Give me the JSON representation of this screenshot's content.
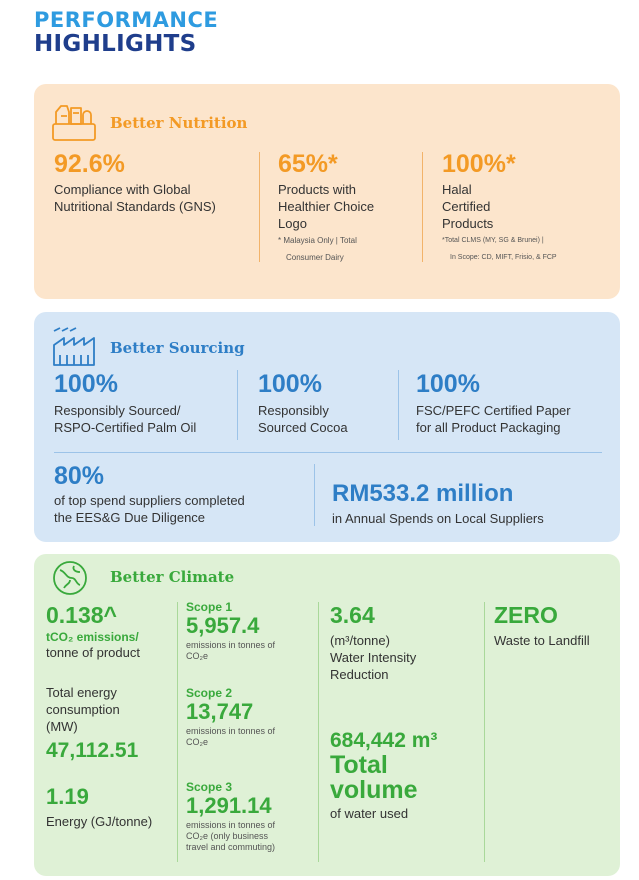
{
  "heading": {
    "line1": "PERFORMANCE",
    "line2": "HIGHLIGHTS"
  },
  "colors": {
    "nutrition": "#f39a25",
    "sourcing": "#2e7ec6",
    "climate": "#39a93c",
    "navy": "#1f3e8c"
  },
  "nutrition": {
    "icon": "food-products-icon",
    "title": "Better Nutrition",
    "stats": [
      {
        "value": "92.6%",
        "lines": [
          "Compliance with Global",
          "Nutritional Standards (GNS)"
        ],
        "notes": []
      },
      {
        "value": "65%*",
        "lines": [
          "Products with",
          "Healthier Choice",
          "Logo"
        ],
        "notes": [
          "* Malaysia Only | Total",
          "Consumer Dairy"
        ]
      },
      {
        "value": "100%*",
        "lines": [
          "Halal",
          "Certified",
          "Products"
        ],
        "notes": [
          "*Total CLMS (MY, SG & Brunei) |",
          "In Scope: CD, MIFT, Frisio, & FCP"
        ]
      }
    ]
  },
  "sourcing": {
    "icon": "factory-icon",
    "title": "Better Sourcing",
    "stats": [
      {
        "value": "100%",
        "lines": [
          "Responsibly Sourced/",
          "RSPO-Certified Palm Oil"
        ]
      },
      {
        "value": "100%",
        "lines": [
          "Responsibly",
          "Sourced Cocoa"
        ]
      },
      {
        "value": "100%",
        "lines": [
          "FSC/PEFC Certified Paper",
          "for all Product Packaging"
        ]
      },
      {
        "value": "80%",
        "lines": [
          "of top spend suppliers completed",
          "the EES&G Due Diligence"
        ]
      },
      {
        "value": "RM533.2 million",
        "lines": [
          "in Annual Spends on Local Suppliers"
        ]
      }
    ]
  },
  "climate": {
    "icon": "globe-leaf-icon",
    "title": "Better Climate",
    "emissions": {
      "value": "0.138^",
      "unit": "tCO₂ emissions/",
      "unit2": "tonne of product"
    },
    "energy_consumption": {
      "lines": [
        "Total energy",
        "consumption",
        "(MW)"
      ],
      "value": "47,112.51"
    },
    "energy_intensity": {
      "value": "1.19",
      "label": "Energy (GJ/tonne)"
    },
    "scopes": [
      {
        "label": "Scope 1",
        "value": "5,957.4",
        "lines": [
          "emissions in tonnes of",
          "CO₂e"
        ]
      },
      {
        "label": "Scope 2",
        "value": "13,747",
        "lines": [
          "emissions in tonnes of",
          "CO₂e"
        ]
      },
      {
        "label": "Scope 3",
        "value": "1,291.14",
        "lines": [
          "emissions in tonnes of",
          "CO₂e (only business",
          "travel and commuting)"
        ]
      }
    ],
    "water_intensity": {
      "value": "3.64",
      "lines": [
        "(m³/tonne)",
        "Water Intensity",
        "Reduction"
      ]
    },
    "water_volume": {
      "value": "684,442 m³",
      "line1": "Total",
      "line2": "volume",
      "label": "of water used"
    },
    "waste": {
      "value": "ZERO",
      "label": "Waste to Landfill"
    }
  }
}
